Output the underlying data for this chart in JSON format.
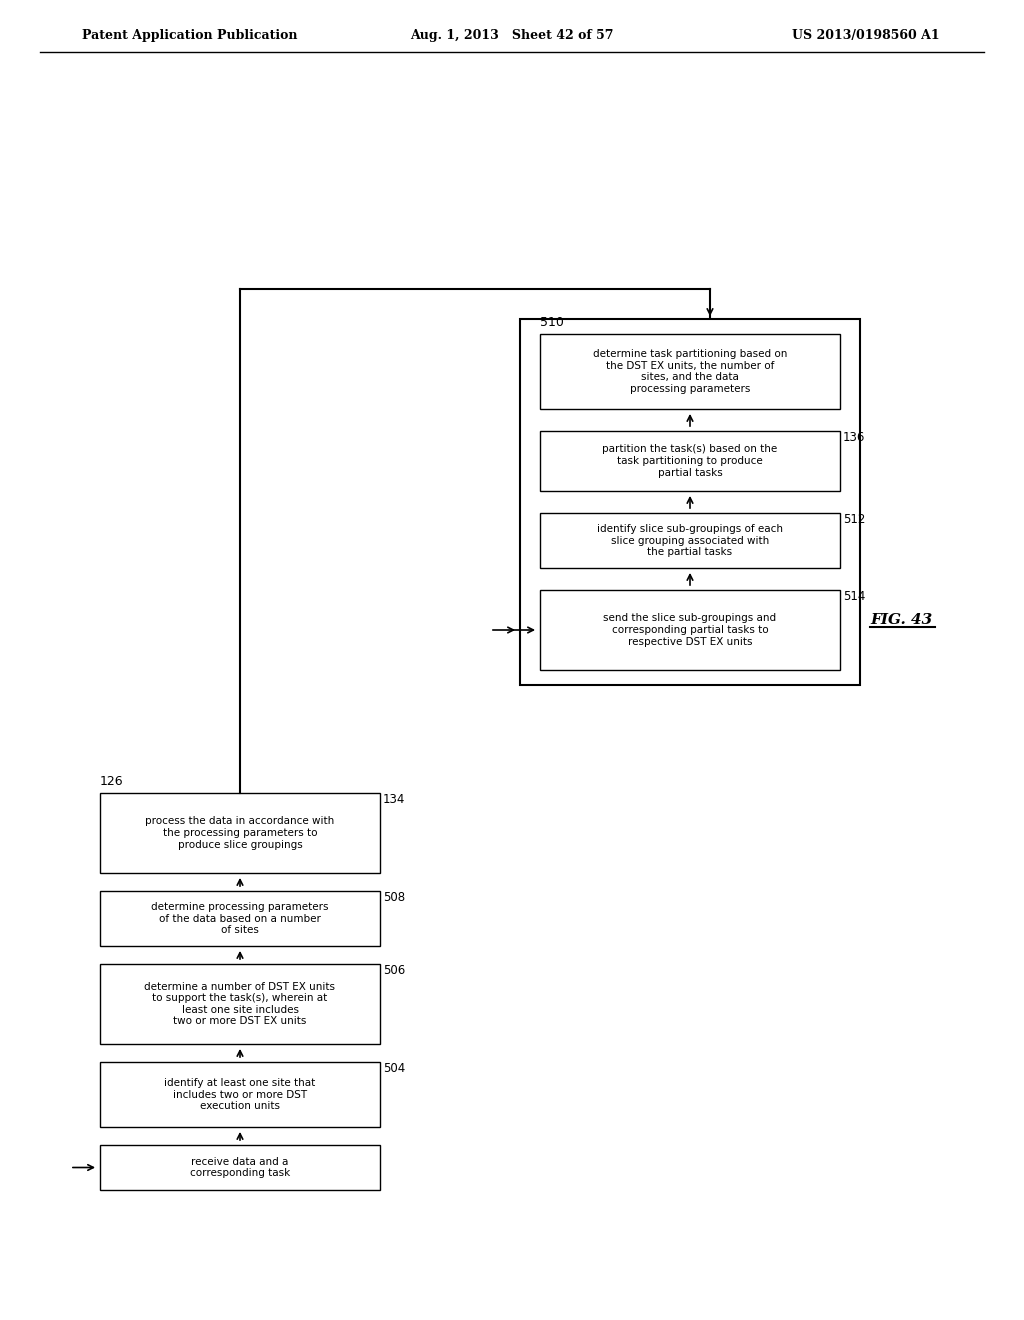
{
  "header_left": "Patent Application Publication",
  "header_mid": "Aug. 1, 2013   Sheet 42 of 57",
  "header_right": "US 2013/0198560 A1",
  "fig_label": "FIG. 43",
  "bg_color": "#ffffff",
  "left_flow": {
    "outer_label": "126",
    "boxes": [
      {
        "id": "126_main",
        "label": "receive data and a corresponding task",
        "tag": null
      },
      {
        "id": "504",
        "label": "identify at least one site that includes two or\nmore DST execution units",
        "tag": "504"
      },
      {
        "id": "506",
        "label": "determine a number of DST EX units to support\nthe task(s), wherein at least one site includes\ntwo or more DST EX units",
        "tag": "506"
      },
      {
        "id": "508",
        "label": "determine processing parameters of the data\nbased on a number of sites",
        "tag": "508"
      },
      {
        "id": "134",
        "label": "process the data in accordance with the\nprocessing parameters to produce slice\ngroupings",
        "tag": "134"
      }
    ]
  },
  "right_flow": {
    "outer_label": "510",
    "boxes": [
      {
        "id": "510_main",
        "label": "determine task partitioning based on the DST\nEX units, the number of sites, and the data\nprocessing parameters",
        "tag": null
      },
      {
        "id": "136",
        "label": "partition the task(s) based on the task\npartitioning to produce partial tasks",
        "tag": "136"
      },
      {
        "id": "512",
        "label": "identify slice sub-groupings of each slice\ngrouping associated with the partial tasks",
        "tag": "512"
      },
      {
        "id": "514",
        "label": "send the slice sub-groupings and\ncorresponding partial tasks to respective DST\nEX units",
        "tag": "514"
      }
    ]
  }
}
